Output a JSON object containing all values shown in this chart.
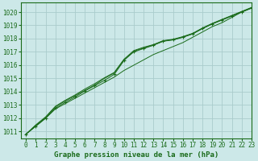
{
  "title": "Graphe pression niveau de la mer (hPa)",
  "bg_color": "#cce8e8",
  "grid_color": "#aacccc",
  "line_color": "#1a6b1a",
  "xlim": [
    -0.5,
    23
  ],
  "ylim": [
    1010.5,
    1020.7
  ],
  "yticks": [
    1011,
    1012,
    1013,
    1014,
    1015,
    1016,
    1017,
    1018,
    1019,
    1020
  ],
  "xticks": [
    0,
    1,
    2,
    3,
    4,
    5,
    6,
    7,
    8,
    9,
    10,
    11,
    12,
    13,
    14,
    15,
    16,
    17,
    18,
    19,
    20,
    21,
    22,
    23
  ],
  "s1_y": [
    1010.8,
    1011.4,
    1012.0,
    1012.7,
    1013.1,
    1013.5,
    1013.9,
    1014.3,
    1014.7,
    1015.1,
    1015.6,
    1016.0,
    1016.4,
    1016.8,
    1017.1,
    1017.4,
    1017.7,
    1018.1,
    1018.5,
    1018.9,
    1019.2,
    1019.6,
    1020.0,
    1020.3
  ],
  "s2_y": [
    1010.8,
    1011.45,
    1012.05,
    1012.85,
    1013.3,
    1013.7,
    1014.1,
    1014.5,
    1015.0,
    1015.4,
    1016.4,
    1017.0,
    1017.25,
    1017.5,
    1017.8,
    1017.9,
    1018.1,
    1018.35,
    1018.75,
    1019.1,
    1019.4,
    1019.7,
    1020.0,
    1020.3
  ],
  "s3_y": [
    1010.8,
    1011.5,
    1012.1,
    1012.9,
    1013.35,
    1013.75,
    1014.2,
    1014.6,
    1015.05,
    1015.45,
    1016.45,
    1017.1,
    1017.35,
    1017.55,
    1017.85,
    1017.95,
    1018.15,
    1018.4,
    1018.8,
    1019.15,
    1019.45,
    1019.75,
    1020.05,
    1020.35
  ],
  "sm_y": [
    1010.8,
    1011.4,
    1012.0,
    1012.75,
    1013.2,
    1013.6,
    1014.05,
    1014.45,
    1014.85,
    1015.3,
    1016.35,
    1017.05,
    1017.3,
    1017.52,
    1017.82,
    1017.92,
    1018.12,
    1018.37,
    1018.77,
    1019.12,
    1019.42,
    1019.72,
    1020.02,
    1020.32
  ],
  "title_fontsize": 6.5,
  "tick_fontsize": 5.5
}
